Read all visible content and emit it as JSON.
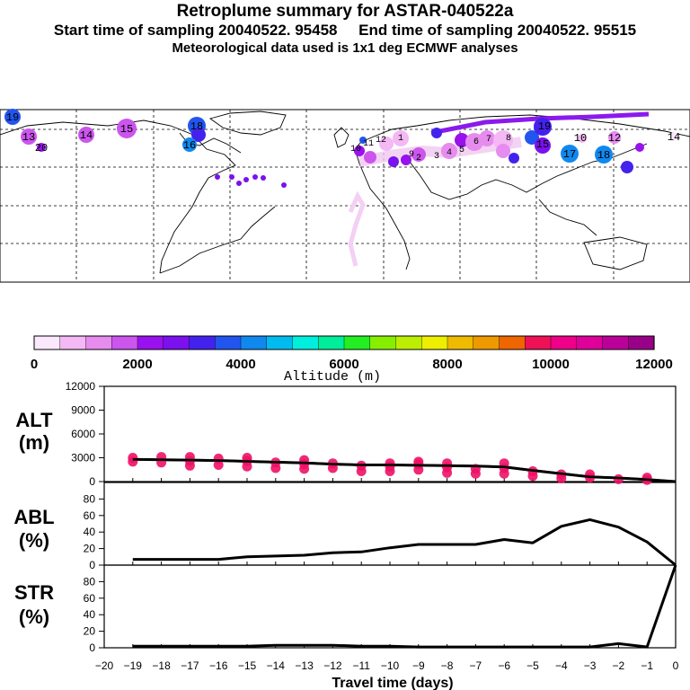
{
  "header": {
    "title": "Retroplume summary for ASTAR-040522a",
    "start_label": "Start time of sampling",
    "start_value": "20040522. 95458",
    "end_label": "End time of sampling",
    "end_value": "20040522. 95515",
    "met_line": "Meteorological data used is 1x1 deg ECMWF analyses"
  },
  "colors": {
    "marker": "#ee1166",
    "line": "#000000",
    "colorbar": [
      "#fce8fc",
      "#f4b8f4",
      "#e68cee",
      "#cc55ee",
      "#9911ee",
      "#7a11ee",
      "#4422ee",
      "#2255ee",
      "#1188ee",
      "#00bbee",
      "#00eedd",
      "#00ee99",
      "#22ee22",
      "#88ee00",
      "#bbee00",
      "#eeee00",
      "#eebb00",
      "#ee9900",
      "#ee6600",
      "#ee1155",
      "#ee0088",
      "#dd0099",
      "#bb0099",
      "#990088"
    ]
  },
  "map": {
    "numbers": [
      "19",
      "13",
      "14",
      "15",
      "18",
      "16",
      "12",
      "11",
      "10",
      "9",
      "8",
      "7",
      "6",
      "5",
      "4",
      "3",
      "2",
      "1",
      "17",
      "15",
      "10",
      "14",
      "12",
      "18",
      "19",
      "20"
    ]
  },
  "colorbar": {
    "tick_labels": [
      "0",
      "2000",
      "4000",
      "6000",
      "8000",
      "10000",
      "12000"
    ],
    "title": "Altitude (m)"
  },
  "chart_data": [
    {
      "type": "line",
      "id": "alt",
      "ylabel": "ALT",
      "yunit": "(m)",
      "ylim": [
        0,
        12000
      ],
      "yticks": [
        0,
        3000,
        6000,
        9000,
        12000
      ],
      "ytick_labels": [
        "0",
        "3000",
        "6000",
        "9000",
        "12000"
      ],
      "x": [
        -19,
        -18,
        -17,
        -16,
        -15,
        -14,
        -13,
        -12,
        -11,
        -10,
        -9,
        -8,
        -7,
        -6,
        -5,
        -4,
        -3,
        -2,
        -1,
        0
      ],
      "values": [
        2800,
        2750,
        2700,
        2650,
        2550,
        2450,
        2350,
        2200,
        2100,
        2100,
        2050,
        2000,
        1950,
        1850,
        1400,
        1000,
        600,
        450,
        250,
        0
      ],
      "markers": [
        {
          "x": -19,
          "y": 2500
        },
        {
          "x": -19,
          "y": 3000
        },
        {
          "x": -18,
          "y": 2400
        },
        {
          "x": -18,
          "y": 3100
        },
        {
          "x": -17,
          "y": 2000
        },
        {
          "x": -17,
          "y": 2600
        },
        {
          "x": -17,
          "y": 3100
        },
        {
          "x": -16,
          "y": 2100
        },
        {
          "x": -16,
          "y": 2900
        },
        {
          "x": -15,
          "y": 1900
        },
        {
          "x": -15,
          "y": 2600
        },
        {
          "x": -15,
          "y": 3000
        },
        {
          "x": -14,
          "y": 1700
        },
        {
          "x": -14,
          "y": 2400
        },
        {
          "x": -13,
          "y": 1600
        },
        {
          "x": -13,
          "y": 2200
        },
        {
          "x": -13,
          "y": 2700
        },
        {
          "x": -12,
          "y": 1700
        },
        {
          "x": -12,
          "y": 2300
        },
        {
          "x": -11,
          "y": 1300
        },
        {
          "x": -11,
          "y": 2000
        },
        {
          "x": -10,
          "y": 1300
        },
        {
          "x": -10,
          "y": 1900
        },
        {
          "x": -10,
          "y": 2300
        },
        {
          "x": -9,
          "y": 1500
        },
        {
          "x": -9,
          "y": 2200
        },
        {
          "x": -9,
          "y": 2500
        },
        {
          "x": -8,
          "y": 1100
        },
        {
          "x": -8,
          "y": 1800
        },
        {
          "x": -8,
          "y": 2300
        },
        {
          "x": -7,
          "y": 1000
        },
        {
          "x": -7,
          "y": 1600
        },
        {
          "x": -6,
          "y": 1000
        },
        {
          "x": -6,
          "y": 1700
        },
        {
          "x": -6,
          "y": 2300
        },
        {
          "x": -5,
          "y": 700
        },
        {
          "x": -5,
          "y": 1300
        },
        {
          "x": -4,
          "y": 400
        },
        {
          "x": -4,
          "y": 900
        },
        {
          "x": -3,
          "y": 500
        },
        {
          "x": -3,
          "y": 900
        },
        {
          "x": -2,
          "y": 300
        },
        {
          "x": -1,
          "y": 200
        },
        {
          "x": -1,
          "y": 500
        }
      ]
    },
    {
      "type": "line",
      "id": "abl",
      "ylabel": "ABL",
      "yunit": "(%)",
      "ylim": [
        0,
        100
      ],
      "yticks": [
        0,
        20,
        40,
        60,
        80
      ],
      "ytick_labels": [
        "0",
        "20",
        "40",
        "60",
        "80"
      ],
      "x": [
        -19,
        -18,
        -17,
        -16,
        -15,
        -14,
        -13,
        -12,
        -11,
        -10,
        -9,
        -8,
        -7,
        -6,
        -5,
        -4,
        -3,
        -2,
        -1,
        0
      ],
      "values": [
        7,
        7,
        7,
        7,
        10,
        11,
        12,
        15,
        16,
        21,
        25,
        25,
        25,
        31,
        27,
        47,
        55,
        46,
        28,
        0
      ]
    },
    {
      "type": "line",
      "id": "str",
      "ylabel": "STR",
      "yunit": "(%)",
      "ylim": [
        0,
        100
      ],
      "yticks": [
        0,
        20,
        40,
        60,
        80
      ],
      "ytick_labels": [
        "0",
        "20",
        "40",
        "60",
        "80"
      ],
      "x": [
        -19,
        -18,
        -17,
        -16,
        -15,
        -14,
        -13,
        -12,
        -11,
        -10,
        -9,
        -8,
        -7,
        -6,
        -5,
        -4,
        -3,
        -2,
        -1,
        0
      ],
      "values": [
        2,
        2,
        2,
        2,
        2,
        3,
        3,
        3,
        2,
        2,
        1,
        1,
        1,
        1,
        1,
        1,
        1,
        5,
        1,
        100
      ],
      "xlabel": "Travel time (days)",
      "xticks": [
        -20,
        -19,
        -18,
        -17,
        -16,
        -15,
        -14,
        -13,
        -12,
        -11,
        -10,
        -9,
        -8,
        -7,
        -6,
        -5,
        -4,
        -3,
        -2,
        -1,
        0
      ],
      "xtick_labels": [
        "−20",
        "−19",
        "−18",
        "−17",
        "−16",
        "−15",
        "−14",
        "−13",
        "−12",
        "−11",
        "−10",
        "−9",
        "−8",
        "−7",
        "−6",
        "−5",
        "−4",
        "−3",
        "−2",
        "−1",
        "0"
      ]
    }
  ]
}
